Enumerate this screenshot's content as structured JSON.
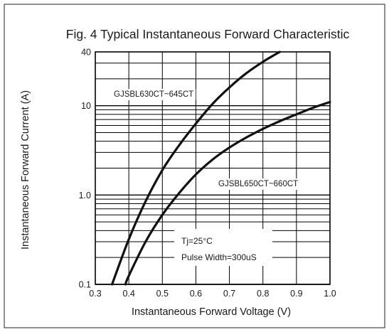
{
  "chart_data": {
    "type": "line",
    "title": "Fig. 4 Typical Instantaneous Forward Characteristic",
    "xlabel": "Instantaneous Forward Voltage (V)",
    "ylabel": "Instantaneous Forward Current (A)",
    "x_scale": "linear",
    "y_scale": "log",
    "xlim": [
      0.3,
      1.0
    ],
    "ylim": [
      0.1,
      40
    ],
    "x_ticks": [
      0.3,
      0.4,
      0.5,
      0.6,
      0.7,
      0.8,
      0.9,
      1.0
    ],
    "x_tick_labels": [
      "0.3",
      "0.4",
      "0.5",
      "0.6",
      "0.7",
      "0.8",
      "0.9",
      "1.0"
    ],
    "y_ticks": [
      0.1,
      1.0,
      10,
      40
    ],
    "y_tick_labels": [
      "0.1",
      "1.0",
      "10",
      "40"
    ],
    "grid": true,
    "series": [
      {
        "name": "GJSBL630CT~645CT",
        "x": [
          0.35,
          0.4,
          0.45,
          0.5,
          0.55,
          0.6,
          0.65,
          0.7,
          0.75,
          0.8,
          0.85
        ],
        "y": [
          0.1,
          0.32,
          0.85,
          1.9,
          3.6,
          6.3,
          10.5,
          16.0,
          23.0,
          31.0,
          40.0
        ]
      },
      {
        "name": "GJSBL650CT~660CT",
        "x": [
          0.39,
          0.4,
          0.45,
          0.5,
          0.55,
          0.6,
          0.65,
          0.7,
          0.75,
          0.8,
          0.85,
          0.9,
          0.95,
          1.0
        ],
        "y": [
          0.1,
          0.125,
          0.3,
          0.6,
          1.05,
          1.7,
          2.5,
          3.4,
          4.4,
          5.5,
          6.7,
          8.0,
          9.5,
          11.0
        ]
      }
    ],
    "annotations": [
      "Tj=25°C",
      "Pulse Width=300uS"
    ]
  }
}
